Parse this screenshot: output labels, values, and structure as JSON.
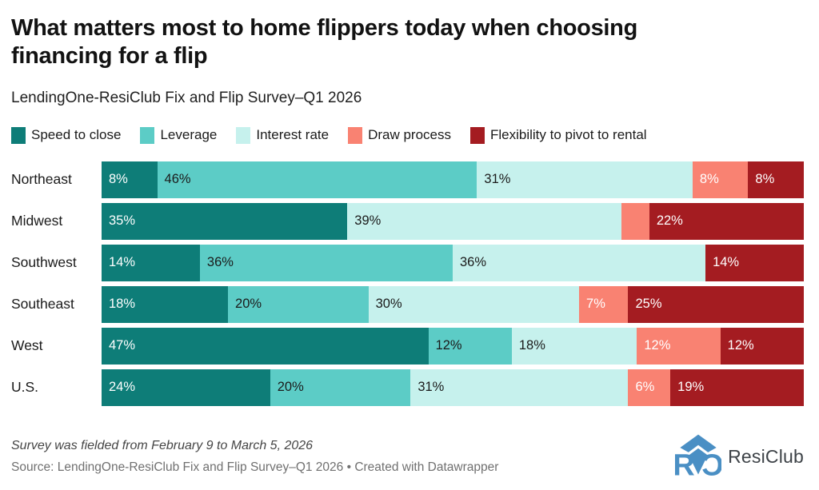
{
  "title": "What matters most to home flippers today when choosing\nfinancing for a flip",
  "subtitle": "LendingOne-ResiClub Fix and Flip Survey–Q1 2026",
  "chart_data": {
    "type": "bar",
    "stacked": true,
    "orientation": "horizontal",
    "unit": "%",
    "label_min_value": 5,
    "legend_position": "top",
    "categories": [
      "Northeast",
      "Midwest",
      "Southwest",
      "Southeast",
      "West",
      "U.S."
    ],
    "series": [
      {
        "name": "Speed to close",
        "color": "#0e7d78",
        "text_color": "#ffffff",
        "values": [
          8,
          35,
          14,
          18,
          47,
          24
        ]
      },
      {
        "name": "Leverage",
        "color": "#5cccc6",
        "text_color": "#1b1b1b",
        "values": [
          46,
          0,
          36,
          20,
          12,
          20
        ]
      },
      {
        "name": "Interest rate",
        "color": "#c6f1ed",
        "text_color": "#1b1b1b",
        "values": [
          31,
          39,
          36,
          30,
          18,
          31
        ]
      },
      {
        "name": "Draw process",
        "color": "#f98272",
        "text_color": "#ffffff",
        "values": [
          8,
          4,
          0,
          7,
          12,
          6
        ]
      },
      {
        "name": "Flexibility to pivot to rental",
        "color": "#a41c21",
        "text_color": "#ffffff",
        "values": [
          8,
          22,
          14,
          25,
          12,
          19
        ]
      }
    ]
  },
  "footer": {
    "note": "Survey was fielded from February 9 to March 5, 2026",
    "source": "Source: LendingOne-ResiClub Fix and Flip Survey–Q1 2026 • Created with Datawrapper"
  },
  "logo": {
    "text": "ResiClub",
    "brand_color": "#4a8fc4"
  }
}
